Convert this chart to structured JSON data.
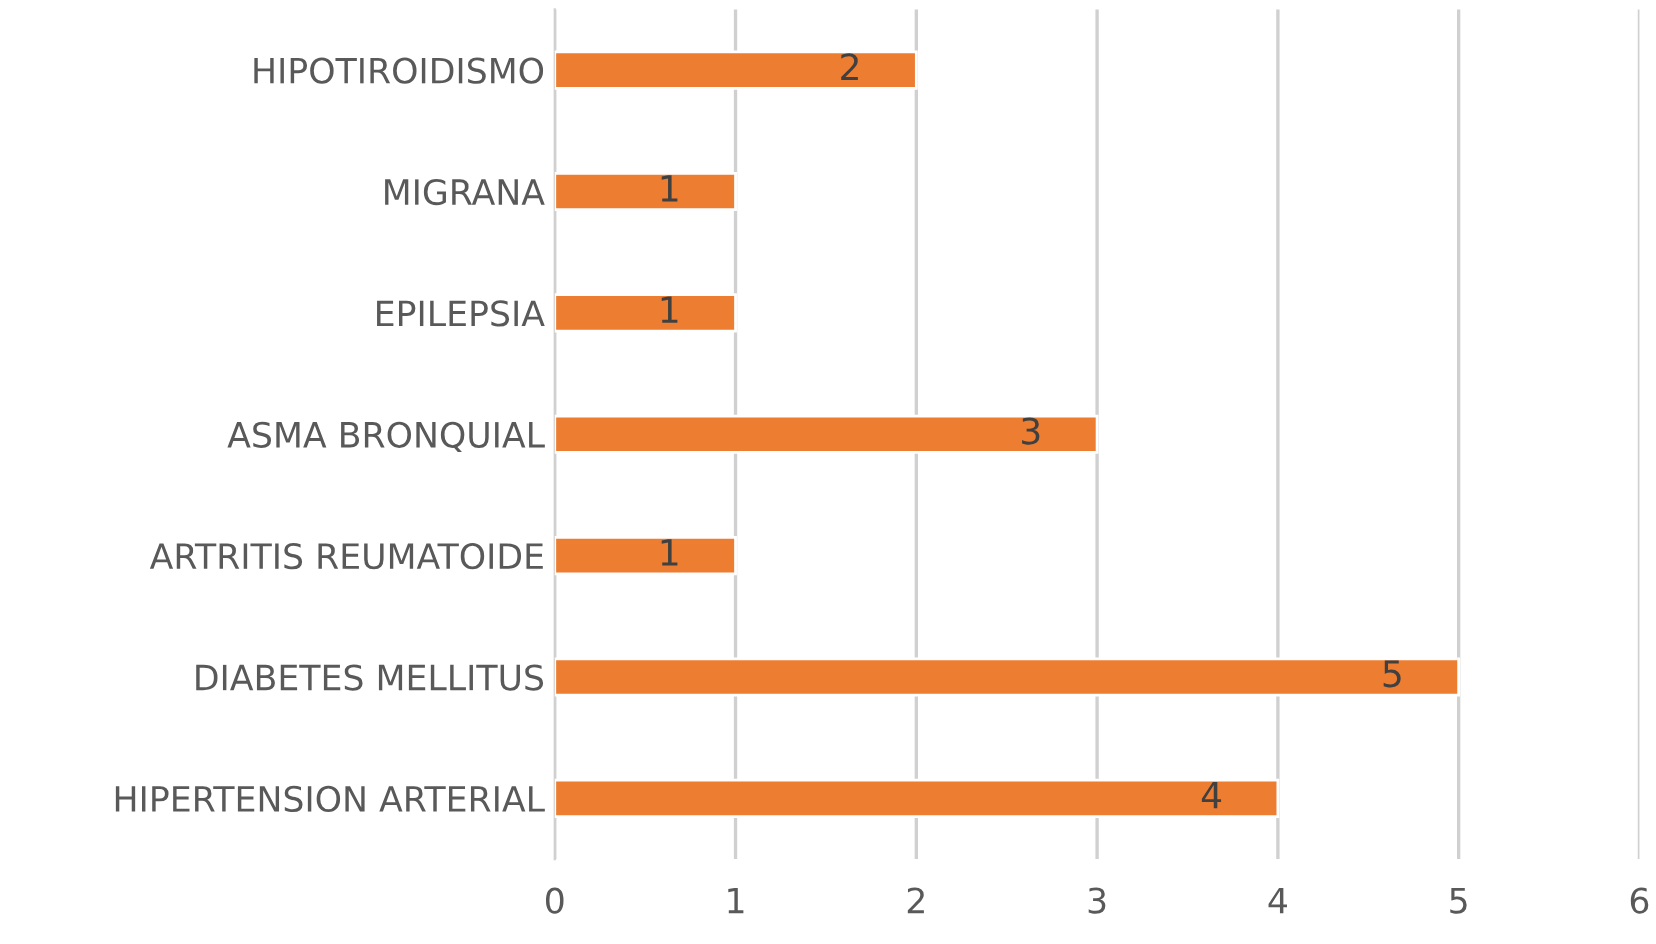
{
  "chart_data": {
    "type": "bar",
    "orientation": "horizontal",
    "categories": [
      "HIPOTIROIDISMO",
      "MIGRANA",
      "EPILEPSIA",
      "ASMA BRONQUIAL",
      "ARTRITIS REUMATOIDE",
      "DIABETES MELLITUS",
      "HIPERTENSION ARTERIAL"
    ],
    "values": [
      2,
      1,
      1,
      3,
      1,
      5,
      4
    ],
    "color": "#ed7d31",
    "xlim": [
      0,
      6
    ],
    "xticks": [
      0,
      1,
      2,
      3,
      4,
      5,
      6
    ],
    "grid": "x",
    "data_labels": true
  }
}
